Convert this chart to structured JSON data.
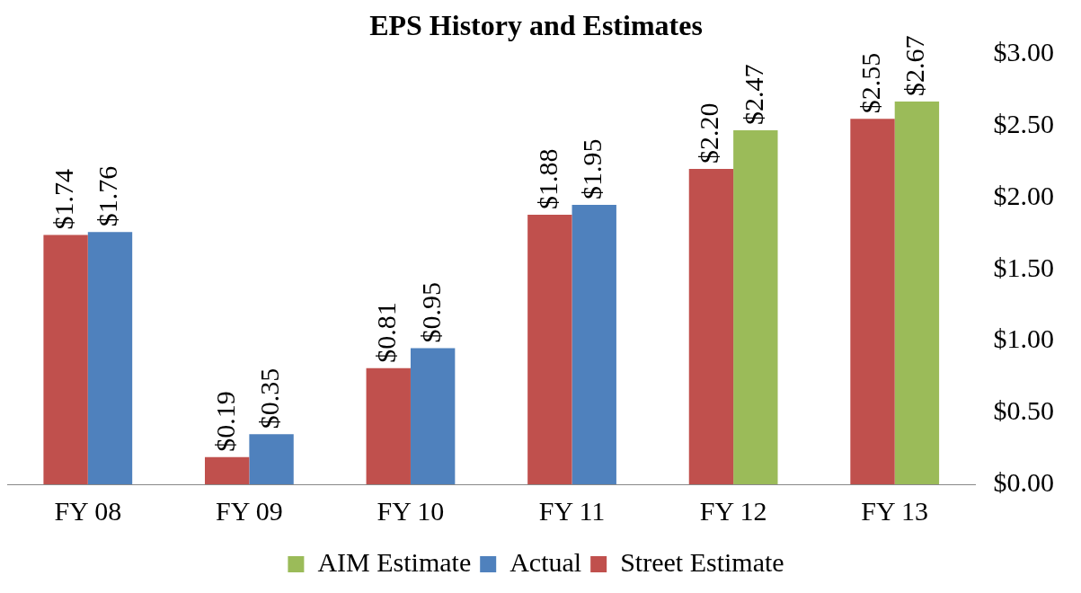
{
  "chart_data": {
    "type": "bar",
    "title": "EPS History and Estimates",
    "categories": [
      "FY 08",
      "FY 09",
      "FY 10",
      "FY 11",
      "FY 12",
      "FY 13"
    ],
    "series": [
      {
        "name": "Street Estimate",
        "color": "#c0504d",
        "values": [
          1.74,
          0.19,
          0.81,
          1.88,
          2.2,
          2.55
        ],
        "value_labels": [
          "$1.74",
          "$0.19",
          "$0.81",
          "$1.88",
          "$2.20",
          "$2.55"
        ]
      },
      {
        "name": "Actual",
        "color": "#4f81bd",
        "values": [
          1.76,
          0.35,
          0.95,
          1.95,
          null,
          null
        ],
        "value_labels": [
          "$1.76",
          "$0.35",
          "$0.95",
          "$1.95",
          null,
          null
        ]
      },
      {
        "name": "AIM Estimate",
        "color": "#9bbb59",
        "values": [
          null,
          null,
          null,
          null,
          2.47,
          2.67
        ],
        "value_labels": [
          null,
          null,
          null,
          null,
          "$2.47",
          "$2.67"
        ]
      }
    ],
    "ylim": [
      0,
      3
    ],
    "yticks": [
      {
        "value": 0,
        "label": "$0.00"
      },
      {
        "value": 0.5,
        "label": "$0.50"
      },
      {
        "value": 1,
        "label": "$1.00"
      },
      {
        "value": 1.5,
        "label": "$1.50"
      },
      {
        "value": 2,
        "label": "$2.00"
      },
      {
        "value": 2.5,
        "label": "$2.50"
      },
      {
        "value": 3,
        "label": "$3.00"
      }
    ],
    "grid": false,
    "legend": "bottom"
  }
}
